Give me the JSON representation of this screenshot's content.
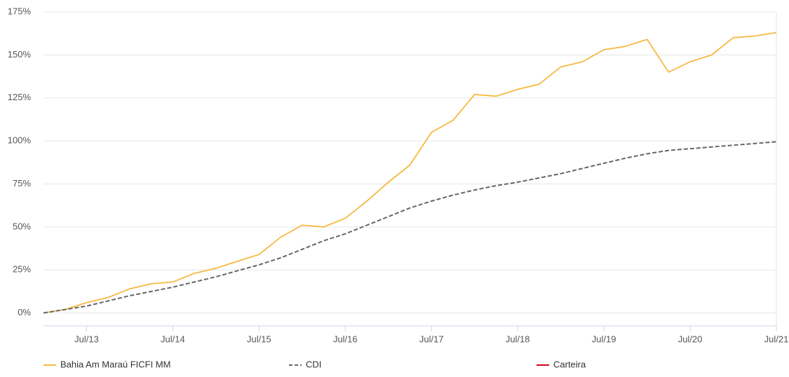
{
  "chart_data": {
    "type": "line",
    "categories": [
      null,
      null,
      "Jul/13",
      null,
      null,
      null,
      "Jul/14",
      null,
      null,
      null,
      "Jul/15",
      null,
      null,
      null,
      "Jul/16",
      null,
      null,
      null,
      "Jul/17",
      null,
      null,
      null,
      "Jul/18",
      null,
      null,
      null,
      "Jul/19",
      null,
      null,
      null,
      "Jul/20",
      null,
      null,
      null,
      "Jul/21"
    ],
    "series": [
      {
        "name": "Bahia Am Maraú FICFI MM",
        "color": "#f5b941",
        "dash": false,
        "values": [
          0,
          2,
          6,
          9,
          14,
          17,
          18,
          23,
          26,
          30,
          34,
          44,
          51,
          50,
          55,
          65,
          76,
          86,
          105,
          112,
          127,
          126,
          130,
          133,
          143,
          146,
          153,
          155,
          159,
          140,
          146,
          150,
          160,
          161,
          163
        ]
      },
      {
        "name": "CDI",
        "color": "#666666",
        "dash": true,
        "values": [
          0,
          2,
          4,
          7,
          10,
          12.5,
          15,
          18,
          21,
          24.5,
          28,
          32,
          37,
          42,
          46,
          51,
          56,
          61,
          65,
          68.5,
          71.5,
          74,
          76,
          78.5,
          81,
          84,
          87,
          90,
          92.5,
          94.5,
          95.5,
          96.5,
          97.5,
          98.5,
          99.5
        ]
      },
      {
        "name": "Carteira",
        "color": "#d0021b",
        "dash": false,
        "values": [
          null,
          null,
          null,
          null,
          null,
          null,
          null,
          null,
          null,
          null,
          null,
          null,
          null,
          null,
          null,
          null,
          null,
          null,
          null,
          null,
          null,
          null,
          null,
          null,
          null,
          null,
          null,
          null,
          null,
          null,
          null,
          null,
          null,
          null,
          null
        ]
      }
    ],
    "ylim": [
      -7.5,
      175
    ],
    "yticks": [
      {
        "value": 0,
        "label": "0%"
      },
      {
        "value": 25,
        "label": "25%"
      },
      {
        "value": 50,
        "label": "50%"
      },
      {
        "value": 75,
        "label": "75%"
      },
      {
        "value": 100,
        "label": "100%"
      },
      {
        "value": 125,
        "label": "125%"
      },
      {
        "value": 150,
        "label": "150%"
      },
      {
        "value": 175,
        "label": "175%"
      }
    ],
    "grid": true
  }
}
